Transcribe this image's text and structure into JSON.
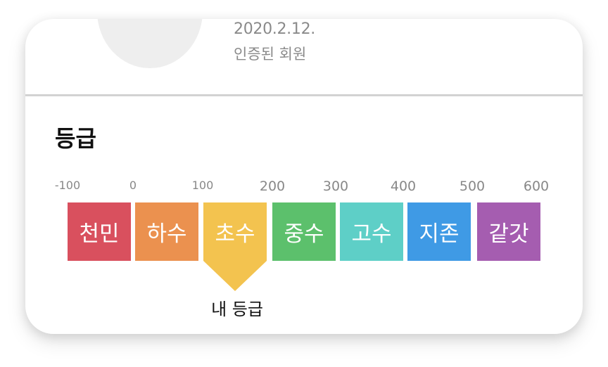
{
  "profile": {
    "join_date": "2020.2.12.",
    "member_status": "인증된 회원"
  },
  "grade": {
    "title": "등급",
    "ticks": [
      "-100",
      "0",
      "100",
      "200",
      "300",
      "400",
      "500",
      "600"
    ],
    "tiers": [
      {
        "label": "천민",
        "color": "#d9505e"
      },
      {
        "label": "하수",
        "color": "#eb914f"
      },
      {
        "label": "초수",
        "color": "#f3c34f"
      },
      {
        "label": "중수",
        "color": "#5cc06c"
      },
      {
        "label": "고수",
        "color": "#5ecfc7"
      },
      {
        "label": "지존",
        "color": "#3f9ae5"
      },
      {
        "label": "같갓",
        "color": "#a55db0"
      }
    ],
    "my_tier_index": 2,
    "my_tier_label": "내 등급"
  }
}
